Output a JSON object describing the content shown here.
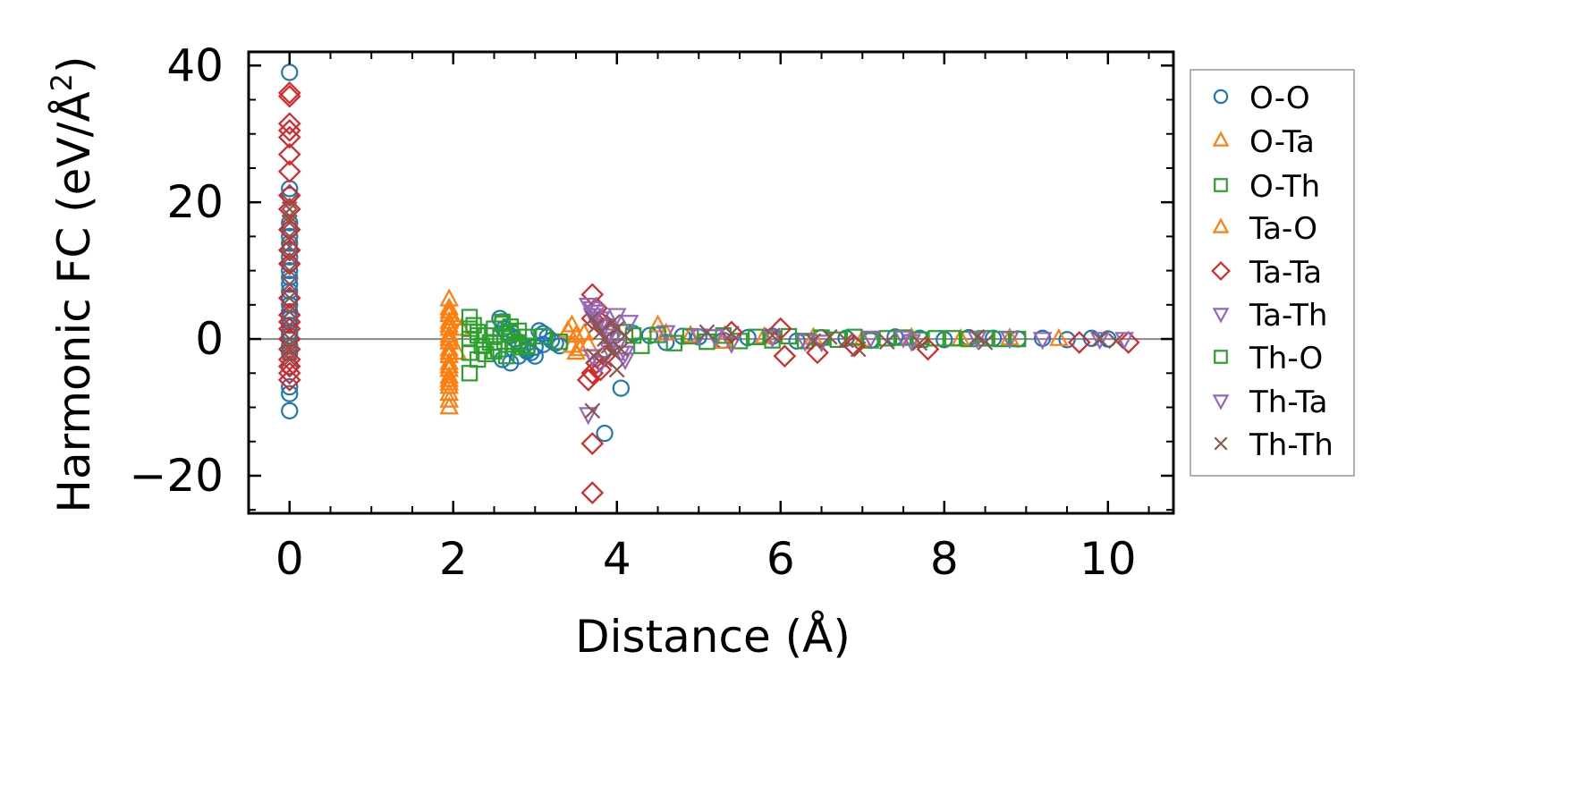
{
  "chart_data": {
    "type": "scatter",
    "title": "",
    "xlabel": "Distance (Å)",
    "ylabel_main": "Harmonic FC (eV/Å",
    "ylabel_sup": "2",
    "ylabel_close": ")",
    "xlim": [
      -0.5,
      10.8
    ],
    "ylim": [
      -25.5,
      42
    ],
    "xticks": [
      0,
      2,
      4,
      6,
      8,
      10
    ],
    "xtick_labels": [
      "0",
      "2",
      "4",
      "6",
      "8",
      "10"
    ],
    "yticks": [
      -20,
      0,
      20,
      40
    ],
    "ytick_labels": [
      "−20",
      "0",
      "20",
      "40"
    ],
    "x_minor_step": 0.5,
    "y_minor_step": 5,
    "zero_line": true,
    "legend_position": "right-outside",
    "series": [
      {
        "name": "O-O",
        "marker": "circle",
        "color": "#1f77b4",
        "x": [
          0,
          0,
          0,
          0,
          0,
          0,
          0,
          0,
          0,
          0,
          0,
          0,
          0,
          0,
          0,
          0,
          0,
          0,
          0,
          0,
          0,
          0,
          0,
          0,
          0,
          0,
          0,
          0,
          2.57,
          2.6,
          2.62,
          2.65,
          2.7,
          2.75,
          2.8,
          2.85,
          2.9,
          2.95,
          3.0,
          3.05,
          3.1,
          3.15,
          3.2,
          3.25,
          3.3,
          2.6,
          2.7,
          2.8,
          2.9,
          3.0,
          3.1,
          4.05,
          3.85,
          4.2,
          4.4,
          4.6,
          4.8,
          5.0,
          5.3,
          5.6,
          5.9,
          6.2,
          6.5,
          6.8,
          7.1,
          7.4,
          7.7,
          8.0,
          8.3,
          8.6,
          8.9,
          9.2,
          9.5,
          9.8,
          10.0
        ],
        "y": [
          39,
          22,
          21,
          17,
          16,
          15,
          14,
          13,
          12,
          11,
          10,
          9,
          8,
          7,
          6,
          5,
          4,
          3,
          2,
          1,
          0.5,
          0,
          -1,
          -2,
          -4,
          -7,
          -8,
          -10.5,
          3,
          2.5,
          1.5,
          1,
          0.5,
          0,
          -0.5,
          -1,
          -1.5,
          -2,
          -2.5,
          1.2,
          0.8,
          0.3,
          -0.2,
          -0.6,
          -1,
          -3,
          -3.5,
          -2.5,
          -1.8,
          -1.2,
          -0.8,
          -7.2,
          -13.8,
          0.8,
          0.5,
          -0.5,
          0.4,
          0.3,
          -0.2,
          0.2,
          0.4,
          -0.3,
          0.2,
          0.1,
          -0.2,
          0.3,
          0.1,
          -0.1,
          0.2,
          0.1,
          0,
          0.1,
          -0.1,
          0.1,
          0
        ]
      },
      {
        "name": "O-Ta",
        "marker": "triangle-up",
        "color": "#ff7f0e",
        "x": [
          1.95,
          1.95,
          1.95,
          1.95,
          1.95,
          1.95,
          1.95,
          1.95,
          1.95,
          1.95,
          1.95,
          1.95,
          1.95,
          1.95,
          1.95,
          1.95,
          1.95,
          2.0,
          2.05,
          2.1,
          3.4,
          3.45,
          3.5,
          3.55,
          3.45,
          3.5,
          4.5,
          4.6,
          4.9,
          5.3,
          5.8,
          6.4,
          7.0,
          7.6,
          8.2,
          8.8,
          9.4
        ],
        "y": [
          5.8,
          4.5,
          3.5,
          2.5,
          1.5,
          0.5,
          -0.5,
          -1.5,
          -2.5,
          -3.5,
          -4.5,
          -5.5,
          -6.5,
          -7,
          -8,
          -9,
          -10,
          3,
          -2,
          1.5,
          1.2,
          -1,
          0.5,
          -1.5,
          2,
          -2,
          2,
          0.8,
          0.5,
          -0.4,
          0.3,
          0.2,
          -0.1,
          0.2,
          0,
          0.1,
          0
        ]
      },
      {
        "name": "O-Th",
        "marker": "square",
        "color": "#2ca02c",
        "x": [
          2.2,
          2.2,
          2.2,
          2.2,
          2.2,
          2.25,
          2.3,
          2.35,
          2.4,
          2.45,
          2.5,
          2.55,
          2.6,
          2.65,
          2.7,
          2.75,
          2.8,
          2.85,
          2.9,
          2.3,
          2.4,
          2.5,
          2.6,
          2.7,
          2.8,
          4.1,
          4.2,
          4.3,
          4.5,
          4.7,
          4.9,
          5.1,
          5.3,
          5.5,
          5.7,
          5.9,
          6.1,
          6.3,
          6.5,
          6.7,
          6.9,
          7.1,
          7.3,
          7.5,
          7.7,
          7.9,
          8.1,
          8.3,
          8.5,
          8.7,
          8.9
        ],
        "y": [
          3.2,
          1.5,
          0,
          -2,
          -5,
          2,
          1,
          -1,
          0.5,
          -0.5,
          1.5,
          -1.5,
          2.5,
          -2.5,
          0.8,
          -0.8,
          1.2,
          -1.2,
          0.3,
          -3,
          -2.2,
          -1.8,
          2.2,
          1.8,
          -0.5,
          1,
          0.5,
          -1,
          0.6,
          -0.6,
          0.4,
          -0.4,
          0.5,
          -0.3,
          0.3,
          -0.2,
          0.4,
          -0.3,
          0.2,
          -0.1,
          0.3,
          -0.2,
          0.1,
          0.2,
          -0.1,
          0.1,
          0.1,
          0,
          0.1,
          0,
          0
        ]
      },
      {
        "name": "Ta-O",
        "marker": "triangle-up",
        "color": "#ff7f0e",
        "x": [
          1.95,
          1.95,
          1.95,
          1.95,
          1.95,
          1.95,
          3.6,
          3.65
        ],
        "y": [
          4,
          2,
          0,
          -2,
          -4,
          -6,
          0.8,
          -0.8
        ]
      },
      {
        "name": "Ta-Ta",
        "marker": "diamond",
        "color": "#d62728",
        "x": [
          0,
          0,
          0,
          0,
          0,
          0,
          0,
          0,
          0,
          0,
          0,
          0,
          0,
          0,
          0,
          0,
          0,
          0,
          0,
          0,
          0,
          0,
          3.7,
          3.75,
          3.8,
          3.85,
          3.7,
          3.75,
          3.8,
          3.65,
          3.7,
          3.85,
          3.7,
          3.7,
          5.4,
          6.0,
          6.05,
          6.45,
          6.9,
          7.8,
          9.65,
          10.25
        ],
        "y": [
          36,
          35.5,
          31.5,
          30.5,
          29.5,
          27,
          24.5,
          21,
          19,
          16,
          13,
          11,
          6,
          3.5,
          2.5,
          1.5,
          0,
          -1.5,
          -3,
          -4,
          -5,
          -6,
          6.5,
          4.5,
          2.5,
          -2.5,
          -5,
          -3.5,
          -4.5,
          -6,
          3,
          1.5,
          -15.3,
          -22.5,
          1,
          1.5,
          -2.5,
          -2,
          -1,
          -1.5,
          -0.5,
          -0.5
        ]
      },
      {
        "name": "Ta-Th",
        "marker": "triangle-down",
        "color": "#9467bd",
        "x": [
          3.65,
          3.7,
          3.75,
          3.8,
          3.85,
          3.9,
          3.95,
          4.0,
          4.05,
          4.1,
          4.15,
          3.7,
          3.8,
          3.9,
          4.0,
          3.65,
          4.6,
          5.0,
          5.4,
          5.9,
          6.5,
          7.1,
          7.6,
          8.4,
          9.2,
          10.2
        ],
        "y": [
          5,
          4.5,
          4,
          3,
          2,
          1,
          0,
          -1,
          -2,
          -3,
          2.5,
          -2.5,
          -3.5,
          -1.5,
          3.5,
          -11,
          1,
          0.5,
          -0.6,
          0.3,
          -0.4,
          0.2,
          -0.3,
          0.1,
          0,
          0
        ]
      },
      {
        "name": "Th-O",
        "marker": "square",
        "color": "#2ca02c",
        "x": [
          2.3,
          2.5,
          2.7,
          2.9,
          3.1,
          3.3
        ],
        "y": [
          0.5,
          -0.5,
          1,
          -1,
          0.4,
          -0.4
        ]
      },
      {
        "name": "Th-Ta",
        "marker": "triangle-down",
        "color": "#9467bd",
        "x": [
          3.7,
          3.8,
          3.9,
          4.0,
          4.1,
          5.2,
          6.3,
          7.5,
          8.8,
          9.9
        ],
        "y": [
          3.5,
          2,
          0.5,
          -1,
          -2,
          0.4,
          -0.3,
          0.2,
          0.1,
          0
        ]
      },
      {
        "name": "Th-Th",
        "marker": "x",
        "color": "#8c564b",
        "x": [
          0,
          0,
          0,
          0,
          0,
          0,
          0,
          0,
          0,
          0,
          0,
          0,
          0,
          0,
          0,
          0,
          3.7,
          3.75,
          3.8,
          3.85,
          3.9,
          3.95,
          4.0,
          4.05,
          4.1,
          3.72,
          3.85,
          3.95,
          3.7,
          4.0,
          5.1,
          5.4,
          5.9,
          6.4,
          6.6,
          6.8,
          6.95,
          7.3,
          7.7,
          8.4,
          8.5,
          9.9,
          10.1
        ],
        "y": [
          20,
          19,
          18,
          17,
          15,
          13.5,
          12,
          10,
          8,
          6,
          4,
          2,
          0,
          -1,
          -2,
          -3,
          3,
          2,
          1,
          0,
          -1,
          2.5,
          1.5,
          -1.5,
          0.5,
          -2.5,
          -3,
          -2,
          -10.5,
          -4.5,
          1,
          0.8,
          0.5,
          -0.3,
          0.3,
          -0.2,
          -1.5,
          -0.4,
          -0.6,
          0.3,
          -0.5,
          0,
          -0.3
        ]
      }
    ]
  }
}
